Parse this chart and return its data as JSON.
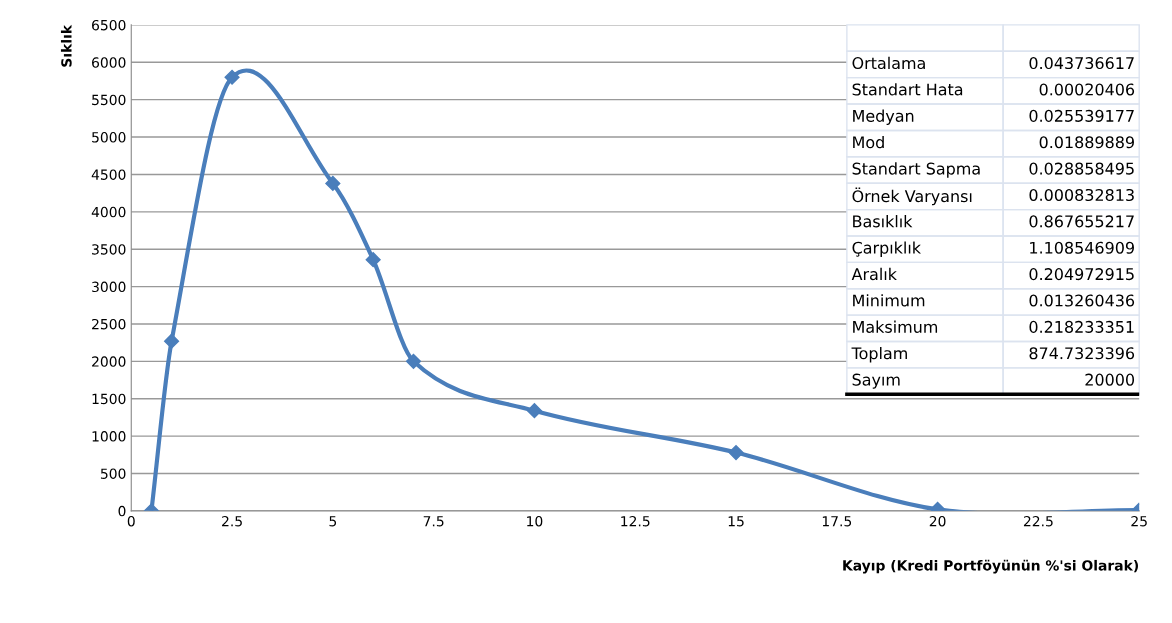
{
  "chart_data": {
    "type": "line",
    "xlabel": "Kayıp (Kredi Portföyünün %'si Olarak)",
    "ylabel": "Sıklık",
    "x": [
      0.5,
      1,
      2.5,
      5,
      6,
      7,
      10,
      15,
      20,
      25
    ],
    "series": [
      {
        "color": "#4a7ebb",
        "values": [
          0,
          2270,
          5800,
          4380,
          3360,
          2000,
          1340,
          780,
          20,
          10
        ]
      }
    ],
    "xlim": [
      0,
      25
    ],
    "xticks": [
      0,
      2.5,
      5,
      7.5,
      10,
      12.5,
      15,
      17.5,
      20,
      22.5,
      25
    ],
    "ylim": [
      0,
      6500
    ],
    "yticks": [
      0,
      500,
      1000,
      1500,
      2000,
      2500,
      3000,
      3500,
      4000,
      4500,
      5000,
      5500,
      6000,
      6500
    ],
    "grid": "y",
    "marker": "diamond",
    "line_style": "solid",
    "annotations": [
      "Ortalama",
      "0.043736617",
      "Standart Hata",
      "0.00020406",
      "Medyan",
      "0.025539177",
      "Mod",
      "0.01889889",
      "Standart Sapma",
      "0.028858495",
      "Örnek Varyansı",
      "0.000832813",
      "Basıklık",
      "0.867655217",
      "Çarpıklık",
      "1.108546909",
      "Aralık",
      "0.204972915",
      "Minimum",
      "0.013260436",
      "Maksimum",
      "0.218233351",
      "Toplam",
      "874.7323396",
      "Sayım",
      "20000"
    ]
  }
}
